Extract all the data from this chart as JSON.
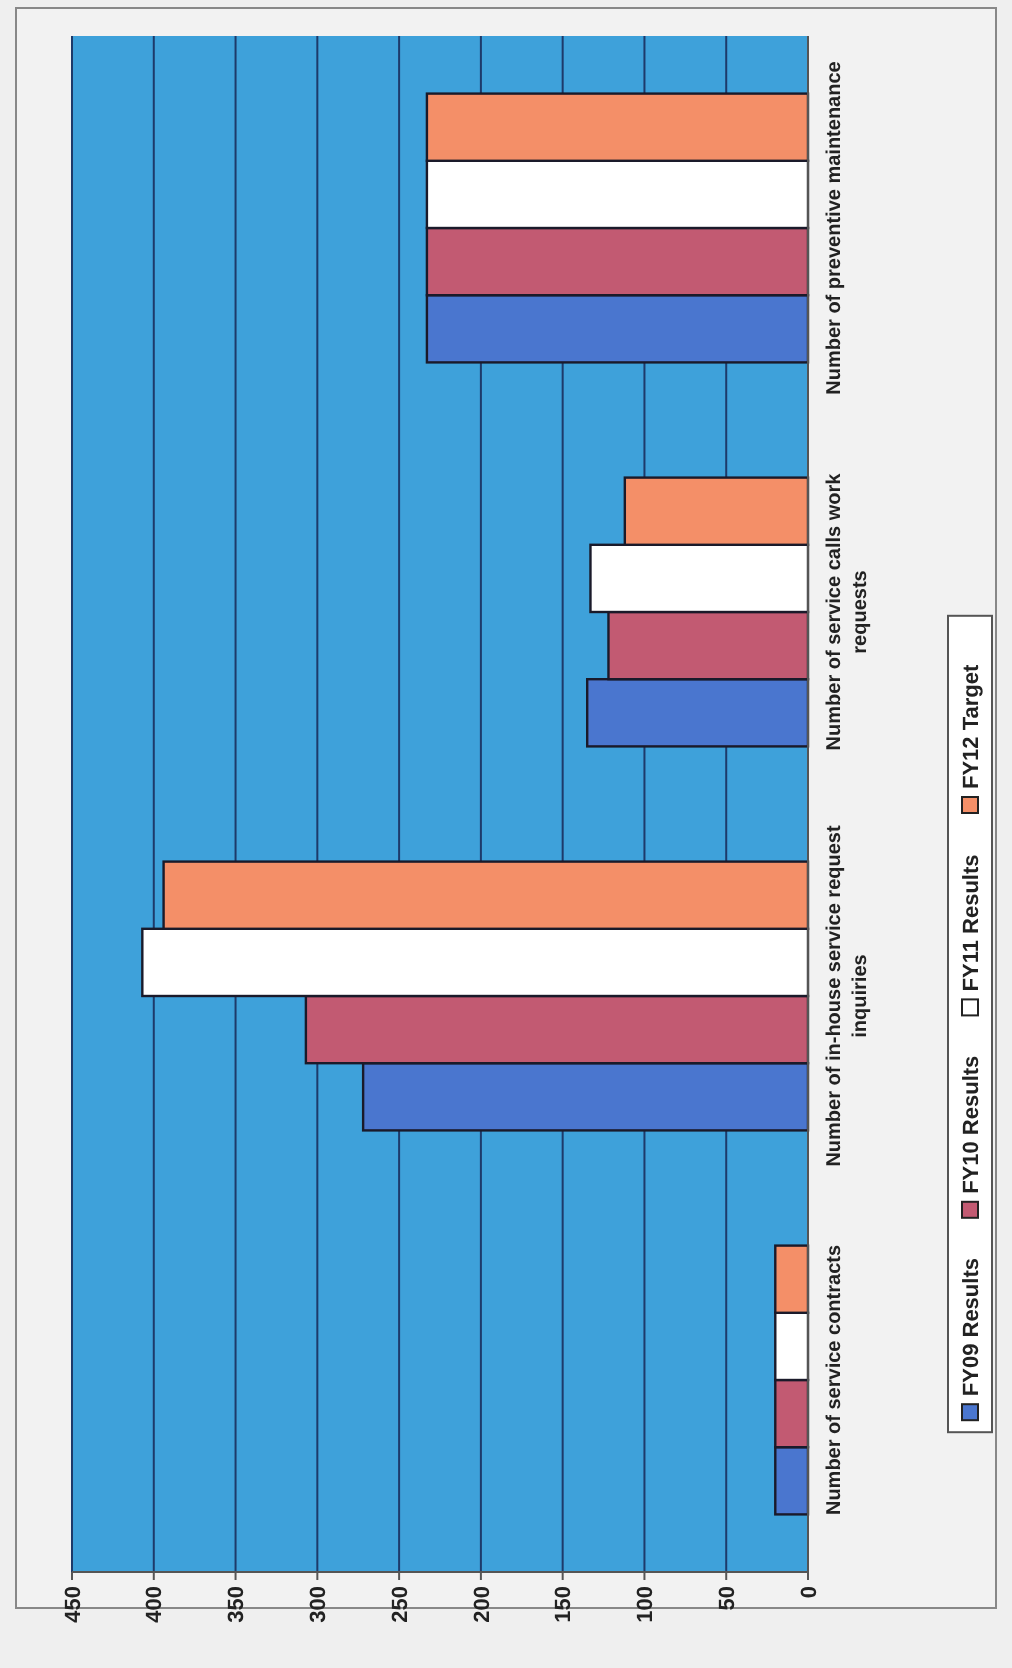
{
  "chart_data": {
    "type": "bar",
    "orientation": "horizontal",
    "categories": [
      "Number of preventive maintenance",
      "Number of service calls work requests",
      "Number of in-house service request inquiries",
      "Number of service contracts"
    ],
    "series": [
      {
        "name": "FY09 Results",
        "color": "#4a76cf",
        "values": [
          233,
          135,
          272,
          20
        ]
      },
      {
        "name": "FY10 Results",
        "color": "#c25a72",
        "values": [
          233,
          122,
          307,
          20
        ]
      },
      {
        "name": "FY11 Results",
        "color": "#ffffff",
        "values": [
          233,
          133,
          407,
          20
        ]
      },
      {
        "name": "FY12 Target",
        "color": "#f48f68",
        "values": [
          233,
          112,
          394,
          20
        ]
      }
    ],
    "xlim": [
      450,
      0
    ],
    "xticks": [
      450,
      400,
      350,
      300,
      250,
      200,
      150,
      100,
      50,
      0
    ],
    "grid": "x",
    "legend": "right"
  }
}
